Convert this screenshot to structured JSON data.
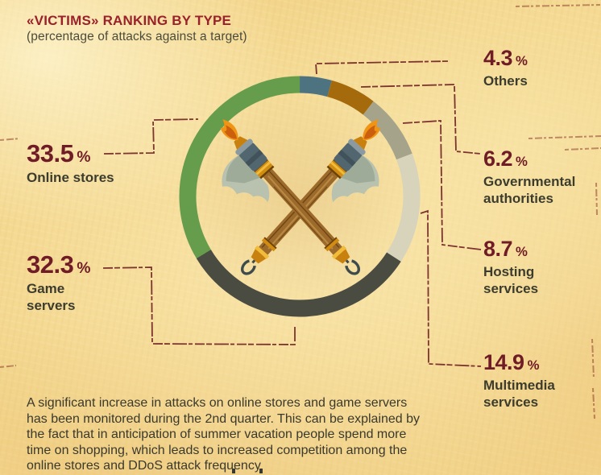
{
  "header": {
    "title": "«VICTIMS» RANKING BY TYPE",
    "subtitle": "(percentage of attacks against a target)"
  },
  "chart_data": {
    "type": "pie",
    "donut": true,
    "title": "«VICTIMS» RANKING BY TYPE",
    "subtitle": "(percentage of attacks against a target)",
    "unit": "%",
    "start_angle_deg": 0,
    "direction": "clockwise",
    "center_icon": "crossed-battle-axes",
    "segments": [
      {
        "label": "Others",
        "value": 4.3,
        "color": "#4e7380"
      },
      {
        "label": "Governmental authorities",
        "value": 6.2,
        "color": "#a56a0c"
      },
      {
        "label": "Hosting services",
        "value": 8.7,
        "color": "#a6a38b"
      },
      {
        "label": "Multimedia services",
        "value": 14.9,
        "color": "#d8d3bb"
      },
      {
        "label": "Game servers",
        "value": 32.3,
        "color": "#4a4c42"
      },
      {
        "label": "Online stores",
        "value": 33.5,
        "color": "#669d4d"
      }
    ]
  },
  "callouts": {
    "left": [
      {
        "value": "33.5",
        "unit": "%",
        "label": "Online stores"
      },
      {
        "value": "32.3",
        "unit": "%",
        "label": "Game\nservers"
      }
    ],
    "right": [
      {
        "value": "4.3",
        "unit": "%",
        "label": "Others"
      },
      {
        "value": "6.2",
        "unit": "%",
        "label": "Governmental\nauthorities"
      },
      {
        "value": "8.7",
        "unit": "%",
        "label": "Hosting\nservices"
      },
      {
        "value": "14.9",
        "unit": "%",
        "label": "Multimedia\nservices"
      }
    ]
  },
  "footer": {
    "note": "A significant increase in attacks on online stores and game servers has been monitored during the 2nd quarter. This can be explained by the fact that in anticipation of summer vacation people spend more time on shopping, which leads to increased competition among the online stores and DDoS attack frequency"
  },
  "colors": {
    "background": "#f3d68c",
    "accent_maroon": "#701c26",
    "title_red": "#9a2129",
    "body_text": "#3a392d",
    "connector": "#6c1c20"
  }
}
